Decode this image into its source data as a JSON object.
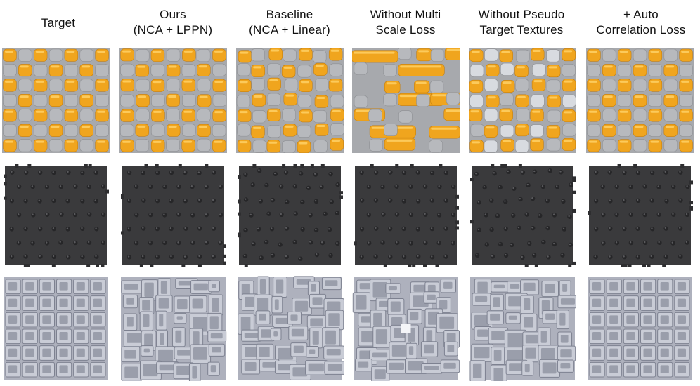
{
  "columns": [
    {
      "line1": "Target",
      "line2": ""
    },
    {
      "line1": "Ours",
      "line2": "(NCA + LPPN)"
    },
    {
      "line1": "Baseline",
      "line2": "(NCA + Linear)"
    },
    {
      "line1": "Without Multi",
      "line2": "Scale Loss"
    },
    {
      "line1": "Without Pseudo",
      "line2": "Target Textures"
    },
    {
      "line1": "+ Auto",
      "line2": "Correlation Loss"
    }
  ],
  "rows": [
    "checker",
    "dark",
    "grid"
  ],
  "colors": {
    "orange": "#f0a51e",
    "orange_hi": "#ffd36a",
    "gray": "#a7a9ad",
    "dark": "#3a3a3c",
    "silver": "#c9ccd6"
  }
}
